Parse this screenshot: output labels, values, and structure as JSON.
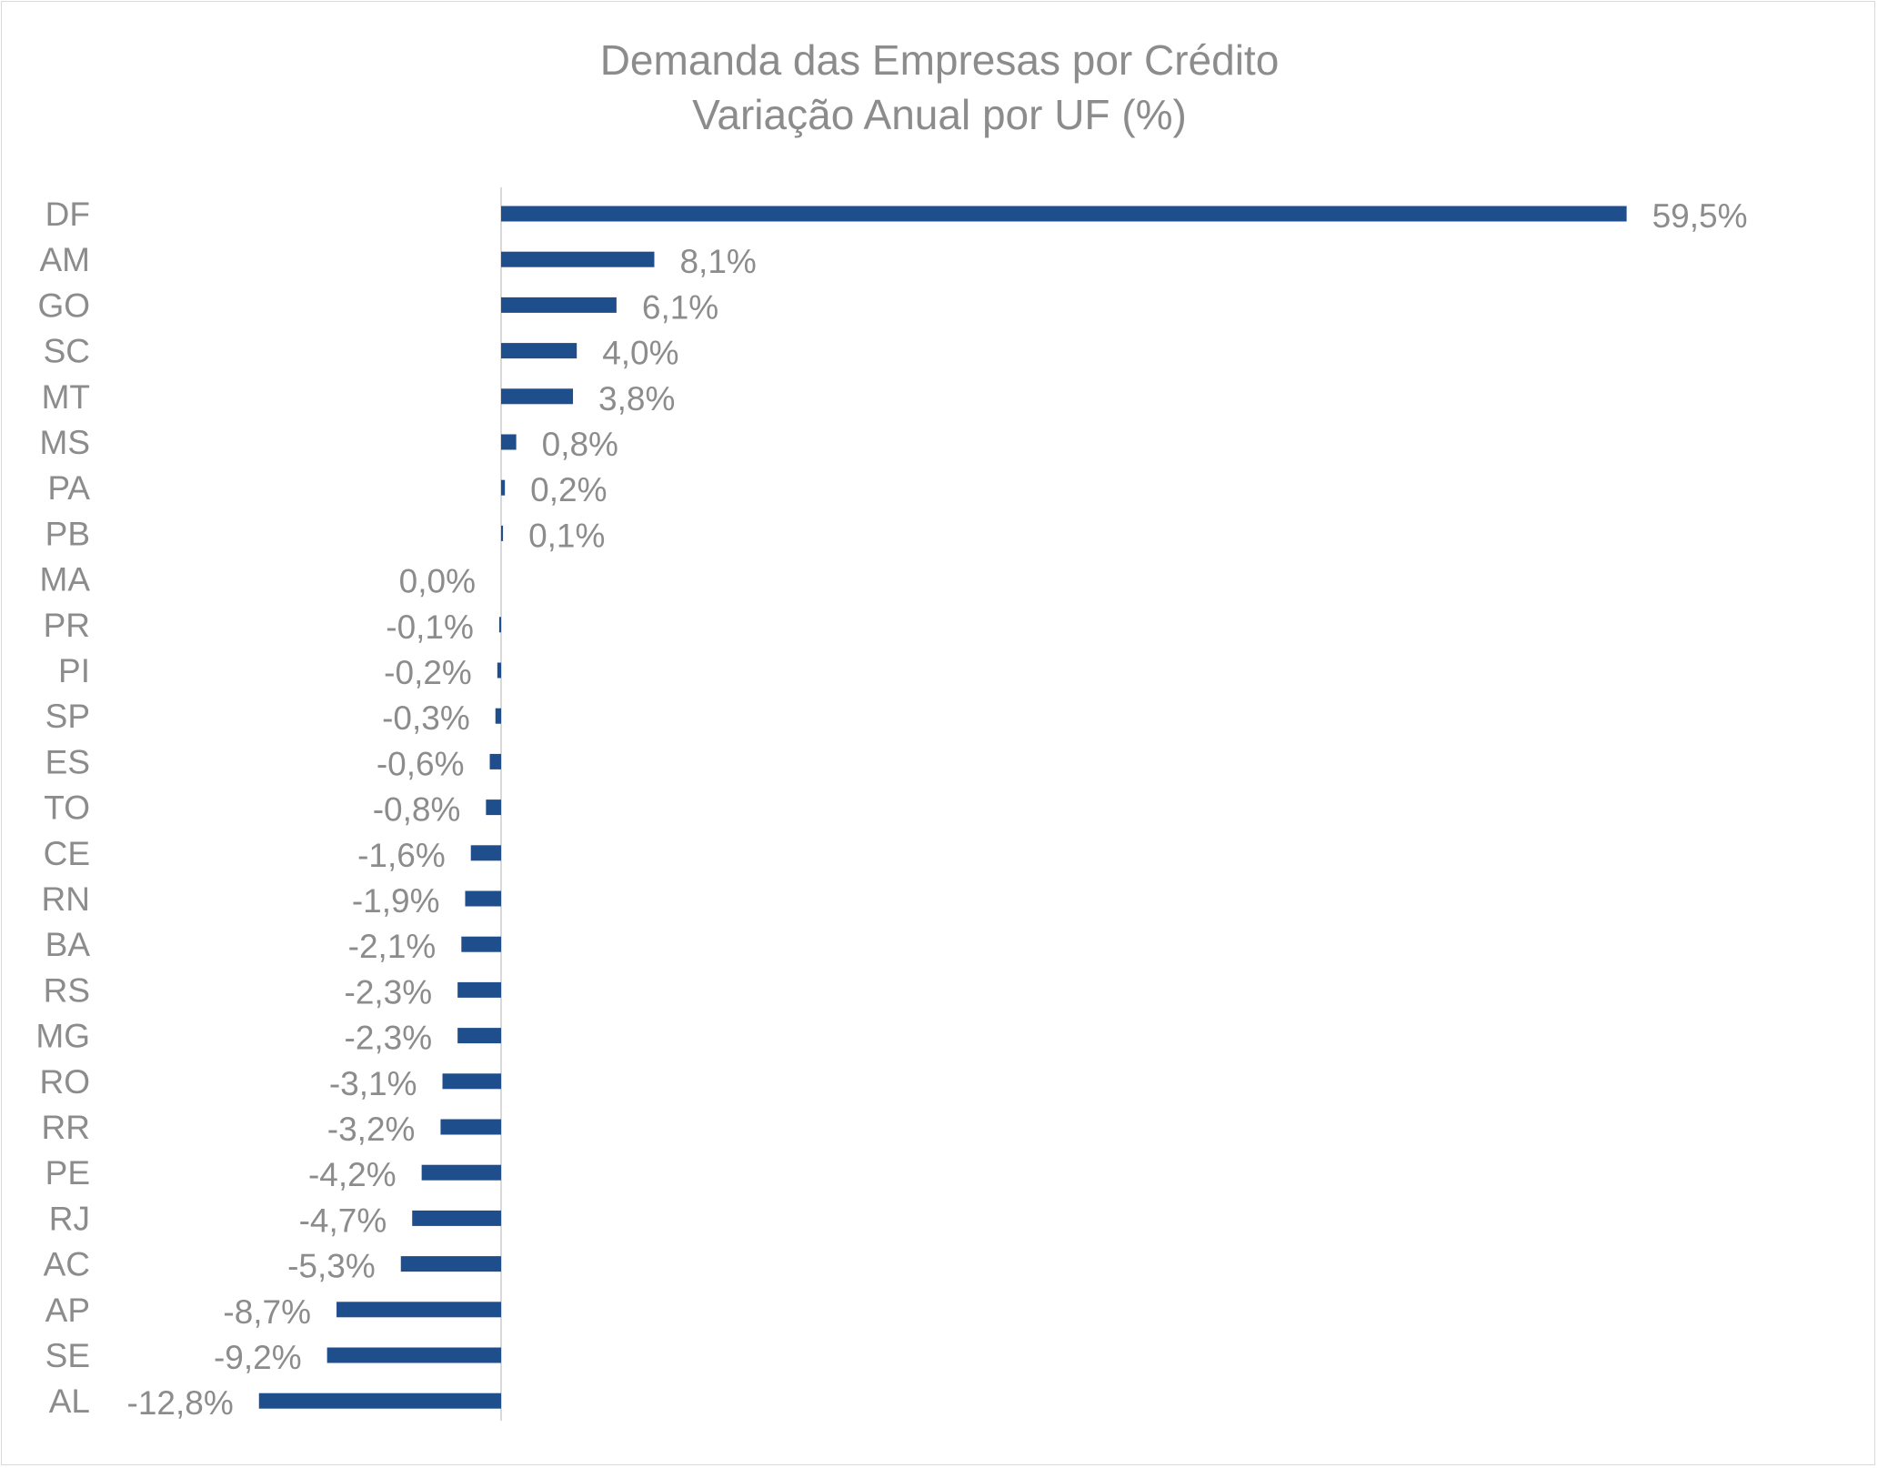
{
  "chart_data": {
    "type": "bar",
    "orientation": "horizontal",
    "title": "Demanda das Empresas por Crédito",
    "subtitle": "Variação Anual por UF (%)",
    "categories": [
      "DF",
      "AM",
      "GO",
      "SC",
      "MT",
      "MS",
      "PA",
      "PB",
      "MA",
      "PR",
      "PI",
      "SP",
      "ES",
      "TO",
      "CE",
      "RN",
      "BA",
      "RS",
      "MG",
      "RO",
      "RR",
      "PE",
      "RJ",
      "AC",
      "AP",
      "SE",
      "AL"
    ],
    "values": [
      59.5,
      8.1,
      6.1,
      4.0,
      3.8,
      0.8,
      0.2,
      0.1,
      0.0,
      -0.1,
      -0.2,
      -0.3,
      -0.6,
      -0.8,
      -1.6,
      -1.9,
      -2.1,
      -2.3,
      -2.3,
      -3.1,
      -3.2,
      -4.2,
      -4.7,
      -5.3,
      -8.7,
      -9.2,
      -12.8
    ],
    "data_labels": [
      "59,5%",
      "8,1%",
      "6,1%",
      "4,0%",
      "3,8%",
      "0,8%",
      "0,2%",
      "0,1%",
      "0,0%",
      "-0,1%",
      "-0,2%",
      "-0,3%",
      "-0,6%",
      "-0,8%",
      "-1,6%",
      "-1,9%",
      "-2,1%",
      "-2,3%",
      "-2,3%",
      "-3,1%",
      "-3,2%",
      "-4,2%",
      "-4,7%",
      "-5,3%",
      "-8,7%",
      "-9,2%",
      "-12,8%"
    ],
    "xlim": [
      -12.8,
      59.5
    ],
    "grid": false,
    "legend": "none",
    "bar_color": "#1f4e8c",
    "text_color": "#8c8c8c",
    "axis_color": "#d9d9d9"
  }
}
